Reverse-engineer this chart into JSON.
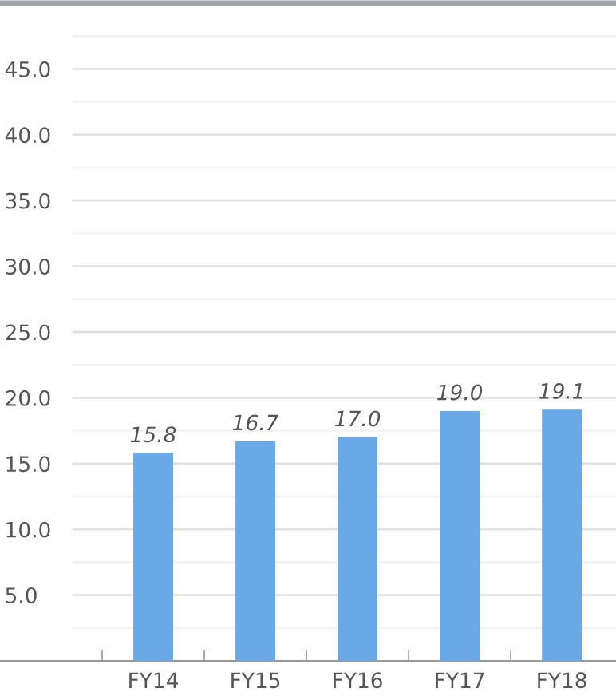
{
  "chart_data": {
    "type": "bar",
    "categories": [
      null,
      "FY14",
      "FY15",
      "FY16",
      "FY17",
      "FY18"
    ],
    "values": [
      null,
      15.8,
      16.7,
      17.0,
      19.0,
      19.1
    ],
    "color": "#6aa8e8",
    "ylim": [
      0,
      50
    ],
    "yticks": [
      {
        "value": 2.5,
        "label": null
      },
      {
        "value": 5,
        "label": "5.0"
      },
      {
        "value": 7.5,
        "label": null
      },
      {
        "value": 10,
        "label": "10.0"
      },
      {
        "value": 12.5,
        "label": null
      },
      {
        "value": 15,
        "label": "15.0"
      },
      {
        "value": 17.5,
        "label": null
      },
      {
        "value": 20,
        "label": "20.0"
      },
      {
        "value": 22.5,
        "label": null
      },
      {
        "value": 25,
        "label": "25.0"
      },
      {
        "value": 27.5,
        "label": null
      },
      {
        "value": 30,
        "label": "30.0"
      },
      {
        "value": 32.5,
        "label": null
      },
      {
        "value": 35,
        "label": "35.0"
      },
      {
        "value": 37.5,
        "label": null
      },
      {
        "value": 40,
        "label": "40.0"
      },
      {
        "value": 42.5,
        "label": null
      },
      {
        "value": 45,
        "label": "45.0"
      },
      {
        "value": 47.5,
        "label": null
      }
    ],
    "grid": "y",
    "value_labels": [
      null,
      "15.8",
      "16.7",
      "17.0",
      "19.0",
      "19.1"
    ]
  }
}
